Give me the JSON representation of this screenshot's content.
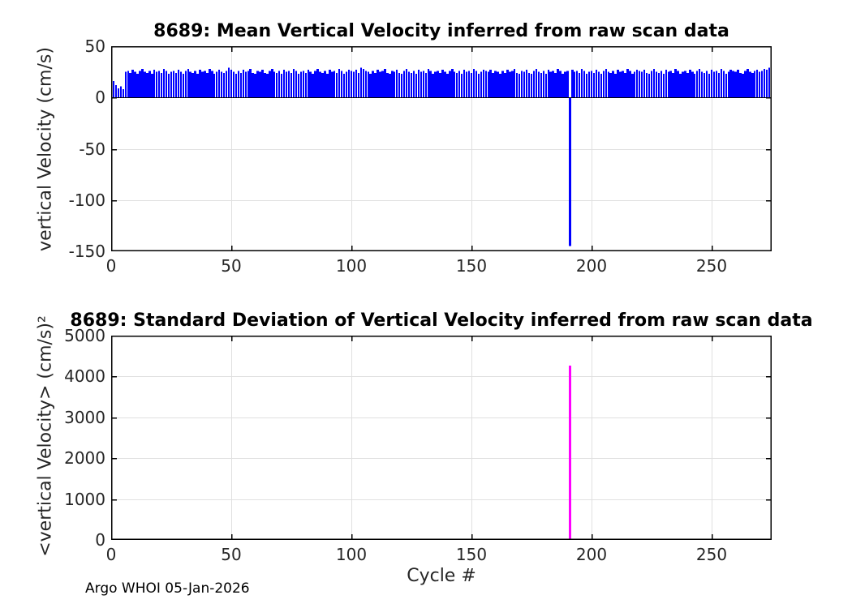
{
  "figure": {
    "footer": "Argo WHOI 05-Jan-2026"
  },
  "chart_data": [
    {
      "type": "bar",
      "title": "8689: Mean Vertical Velocity inferred from raw scan data",
      "ylabel": "vertical Velocity (cm/s)",
      "xlabel": "",
      "bar_color": "#0000FF",
      "baseline_color": "#000000",
      "grid": true,
      "grid_color": "#E0E0E0",
      "xlim": [
        0,
        275
      ],
      "ylim": [
        -150,
        50
      ],
      "xticks": [
        0,
        50,
        100,
        150,
        200,
        250
      ],
      "yticks": [
        -150,
        -100,
        -50,
        0,
        50
      ],
      "x_start_cycle": 1,
      "values": [
        16,
        12,
        9,
        11,
        8,
        25,
        26,
        24,
        27,
        25,
        23,
        26,
        28,
        25,
        24,
        26,
        23,
        27,
        25,
        26,
        24,
        28,
        26,
        23,
        25,
        26,
        24,
        27,
        25,
        23,
        26,
        28,
        25,
        24,
        26,
        23,
        27,
        25,
        26,
        24,
        28,
        26,
        23,
        25,
        27,
        25,
        24,
        26,
        29,
        27,
        25,
        23,
        26,
        24,
        27,
        25,
        26,
        28,
        24,
        23,
        26,
        25,
        27,
        24,
        23,
        26,
        28,
        25,
        24,
        26,
        23,
        27,
        25,
        26,
        24,
        28,
        26,
        23,
        25,
        26,
        24,
        27,
        25,
        23,
        26,
        28,
        25,
        24,
        26,
        23,
        27,
        25,
        26,
        24,
        28,
        26,
        23,
        25,
        27,
        26,
        25,
        27,
        24,
        29,
        28,
        26,
        25,
        23,
        26,
        24,
        27,
        25,
        26,
        28,
        24,
        23,
        26,
        25,
        27,
        24,
        23,
        26,
        28,
        25,
        24,
        26,
        23,
        27,
        25,
        26,
        24,
        28,
        26,
        23,
        25,
        26,
        24,
        27,
        25,
        23,
        26,
        28,
        25,
        24,
        26,
        23,
        27,
        25,
        26,
        24,
        28,
        26,
        23,
        25,
        27,
        26,
        25,
        27,
        24,
        26,
        25,
        23,
        26,
        24,
        27,
        25,
        26,
        28,
        24,
        23,
        26,
        25,
        27,
        24,
        23,
        26,
        28,
        25,
        24,
        26,
        23,
        27,
        25,
        26,
        24,
        28,
        26,
        23,
        25,
        26,
        -145,
        27,
        25,
        26,
        24,
        28,
        26,
        23,
        25,
        26,
        24,
        27,
        25,
        23,
        26,
        28,
        25,
        24,
        26,
        23,
        27,
        25,
        26,
        24,
        28,
        26,
        23,
        25,
        27,
        26,
        25,
        27,
        24,
        23,
        26,
        28,
        25,
        24,
        26,
        23,
        27,
        25,
        26,
        24,
        28,
        26,
        23,
        25,
        26,
        24,
        27,
        25,
        23,
        26,
        28,
        25,
        24,
        26,
        23,
        27,
        25,
        26,
        24,
        28,
        26,
        23,
        25,
        27,
        26,
        25,
        27,
        24,
        23,
        26,
        28,
        25,
        24,
        26,
        27,
        25,
        26,
        28,
        27,
        29
      ]
    },
    {
      "type": "bar",
      "title": "8689: Standard Deviation of Vertical Velocity inferred from raw scan data",
      "ylabel": "<vertical Velocity> (cm/s)²",
      "xlabel": "Cycle #",
      "bar_color": "#FF00FF",
      "grid": true,
      "grid_color": "#E0E0E0",
      "xlim": [
        0,
        275
      ],
      "ylim": [
        0,
        5000
      ],
      "xticks": [
        0,
        50,
        100,
        150,
        200,
        250
      ],
      "yticks": [
        0,
        1000,
        2000,
        3000,
        4000,
        5000
      ],
      "x_start_cycle": 1,
      "n_cycles": 274,
      "baseline_value": 0,
      "spike": {
        "cycle": 191,
        "value": 4270
      }
    }
  ]
}
